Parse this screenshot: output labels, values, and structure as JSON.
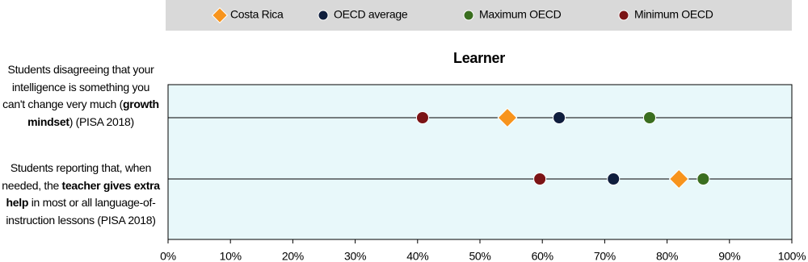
{
  "chart_data": {
    "type": "dot",
    "title": "Learner",
    "categories": [
      [
        {
          "text": "Students disagreeing that your intelligence is something you can't change very much (",
          "bold": false
        },
        {
          "text": "growth mindset",
          "bold": true
        },
        {
          "text": ") (PISA 2018)",
          "bold": false
        }
      ],
      [
        {
          "text": "Students reporting that, when needed, the ",
          "bold": false
        },
        {
          "text": "teacher gives extra help",
          "bold": true
        },
        {
          "text": " in most or all language-of-instruction lessons (PISA 2018)",
          "bold": false
        }
      ]
    ],
    "series": [
      {
        "name": "Costa Rica",
        "color": "#f7941d",
        "marker": "diamond",
        "values": [
          54.4,
          81.9
        ]
      },
      {
        "name": "OECD average",
        "color": "#0f1e3d",
        "marker": "circle",
        "values": [
          62.7,
          71.4
        ]
      },
      {
        "name": "Maximum OECD",
        "color": "#3a6e1f",
        "marker": "circle",
        "values": [
          77.2,
          85.8
        ]
      },
      {
        "name": "Minimum OECD",
        "color": "#7b1416",
        "marker": "circle",
        "values": [
          40.8,
          59.6
        ]
      }
    ],
    "xlim": [
      0,
      100
    ],
    "xticks": [
      {
        "value": 0,
        "label": "0%"
      },
      {
        "value": 10,
        "label": "10%"
      },
      {
        "value": 20,
        "label": "20%"
      },
      {
        "value": 30,
        "label": "30%"
      },
      {
        "value": 40,
        "label": "40%"
      },
      {
        "value": 50,
        "label": "50%"
      },
      {
        "value": 60,
        "label": "60%"
      },
      {
        "value": 70,
        "label": "70%"
      },
      {
        "value": 80,
        "label": "80%"
      },
      {
        "value": 90,
        "label": "90%"
      },
      {
        "value": 100,
        "label": "100%"
      }
    ],
    "legend": "top",
    "plot_background": "#e8f8fa"
  }
}
